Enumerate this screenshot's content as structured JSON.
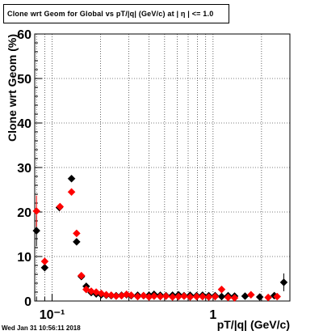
{
  "chart_data": {
    "type": "scatter",
    "title": "Clone wrt Geom for Global vs pT/|q| (GeV/c) at |  η | <= 1.0",
    "xlabel": "pT/|q| (GeV/c)",
    "ylabel": "Clone wrt Geom (%)",
    "x_scale": "log",
    "xlim": [
      0.078,
      3.0
    ],
    "ylim": [
      0,
      60
    ],
    "x_tick_labels": [
      {
        "value": 0.1,
        "label": "10⁻¹"
      },
      {
        "value": 1,
        "label": "1"
      }
    ],
    "y_ticks": [
      0,
      10,
      20,
      30,
      40,
      50,
      60
    ],
    "grid": true,
    "legend": "none",
    "series": [
      {
        "color": "#000000",
        "marker": "diamond",
        "points": [
          {
            "x": 0.08,
            "y": 15.8,
            "err": 3.5
          },
          {
            "x": 0.09,
            "y": 7.5,
            "err": 0.8
          },
          {
            "x": 0.111,
            "y": 21.0,
            "err": 0.5
          },
          {
            "x": 0.132,
            "y": 27.5,
            "err": 0.5
          },
          {
            "x": 0.142,
            "y": 13.3,
            "err": 0.4
          },
          {
            "x": 0.152,
            "y": 5.5,
            "err": 0.3
          },
          {
            "x": 0.163,
            "y": 3.3,
            "err": 0.3
          },
          {
            "x": 0.175,
            "y": 1.9,
            "err": 0.3
          },
          {
            "x": 0.188,
            "y": 1.6,
            "err": 0.2
          },
          {
            "x": 0.202,
            "y": 1.4,
            "err": 0.2
          },
          {
            "x": 0.217,
            "y": 1.3,
            "err": 0.2
          },
          {
            "x": 0.233,
            "y": 1.2,
            "err": 0.2
          },
          {
            "x": 0.25,
            "y": 1.2,
            "err": 0.2
          },
          {
            "x": 0.27,
            "y": 1.3,
            "err": 0.2
          },
          {
            "x": 0.29,
            "y": 1.4,
            "err": 0.2
          },
          {
            "x": 0.31,
            "y": 1.2,
            "err": 0.2
          },
          {
            "x": 0.34,
            "y": 1.3,
            "err": 0.2
          },
          {
            "x": 0.37,
            "y": 1.2,
            "err": 0.2
          },
          {
            "x": 0.4,
            "y": 1.3,
            "err": 0.2
          },
          {
            "x": 0.43,
            "y": 1.5,
            "err": 0.2
          },
          {
            "x": 0.47,
            "y": 1.3,
            "err": 0.2
          },
          {
            "x": 0.51,
            "y": 1.2,
            "err": 0.2
          },
          {
            "x": 0.56,
            "y": 1.3,
            "err": 0.2
          },
          {
            "x": 0.61,
            "y": 1.4,
            "err": 0.2
          },
          {
            "x": 0.66,
            "y": 1.2,
            "err": 0.2
          },
          {
            "x": 0.72,
            "y": 1.3,
            "err": 0.2
          },
          {
            "x": 0.79,
            "y": 1.2,
            "err": 0.2
          },
          {
            "x": 0.86,
            "y": 1.3,
            "err": 0.2
          },
          {
            "x": 0.94,
            "y": 1.2,
            "err": 0.3
          },
          {
            "x": 1.03,
            "y": 1.2,
            "err": 0.3
          },
          {
            "x": 1.13,
            "y": 1.0,
            "err": 0.3
          },
          {
            "x": 1.24,
            "y": 1.2,
            "err": 0.3
          },
          {
            "x": 1.36,
            "y": 1.1,
            "err": 0.3
          },
          {
            "x": 1.58,
            "y": 1.1,
            "err": 0.3
          },
          {
            "x": 1.95,
            "y": 0.9,
            "err": 0.3
          },
          {
            "x": 2.4,
            "y": 1.2,
            "err": 0.4
          },
          {
            "x": 2.75,
            "y": 4.2,
            "err": 2.0
          }
        ]
      },
      {
        "color": "#ff0000",
        "marker": "diamond",
        "points": [
          {
            "x": 0.08,
            "y": 20.2,
            "err": 3.5
          },
          {
            "x": 0.09,
            "y": 8.9,
            "err": 0.8
          },
          {
            "x": 0.112,
            "y": 21.2,
            "err": 0.5
          },
          {
            "x": 0.132,
            "y": 24.5,
            "err": 0.5
          },
          {
            "x": 0.142,
            "y": 15.2,
            "err": 0.4
          },
          {
            "x": 0.152,
            "y": 5.7,
            "err": 0.3
          },
          {
            "x": 0.163,
            "y": 2.6,
            "err": 0.3
          },
          {
            "x": 0.175,
            "y": 2.2,
            "err": 0.3
          },
          {
            "x": 0.188,
            "y": 2.0,
            "err": 0.2
          },
          {
            "x": 0.202,
            "y": 1.7,
            "err": 0.2
          },
          {
            "x": 0.217,
            "y": 1.4,
            "err": 0.2
          },
          {
            "x": 0.233,
            "y": 1.3,
            "err": 0.2
          },
          {
            "x": 0.25,
            "y": 1.1,
            "err": 0.2
          },
          {
            "x": 0.27,
            "y": 1.2,
            "err": 0.2
          },
          {
            "x": 0.29,
            "y": 1.5,
            "err": 0.2
          },
          {
            "x": 0.31,
            "y": 1.3,
            "err": 0.2
          },
          {
            "x": 0.34,
            "y": 1.0,
            "err": 0.2
          },
          {
            "x": 0.37,
            "y": 1.2,
            "err": 0.2
          },
          {
            "x": 0.4,
            "y": 0.9,
            "err": 0.2
          },
          {
            "x": 0.43,
            "y": 1.1,
            "err": 0.2
          },
          {
            "x": 0.47,
            "y": 1.0,
            "err": 0.2
          },
          {
            "x": 0.51,
            "y": 1.1,
            "err": 0.2
          },
          {
            "x": 0.56,
            "y": 0.9,
            "err": 0.2
          },
          {
            "x": 0.61,
            "y": 1.0,
            "err": 0.2
          },
          {
            "x": 0.66,
            "y": 1.1,
            "err": 0.2
          },
          {
            "x": 0.72,
            "y": 0.9,
            "err": 0.2
          },
          {
            "x": 0.79,
            "y": 1.0,
            "err": 0.2
          },
          {
            "x": 0.86,
            "y": 1.0,
            "err": 0.2
          },
          {
            "x": 0.94,
            "y": 0.9,
            "err": 0.3
          },
          {
            "x": 1.03,
            "y": 1.0,
            "err": 0.3
          },
          {
            "x": 1.13,
            "y": 2.6,
            "err": 0.5
          },
          {
            "x": 1.24,
            "y": 0.8,
            "err": 0.3
          },
          {
            "x": 1.36,
            "y": 0.7,
            "err": 0.3
          },
          {
            "x": 1.72,
            "y": 1.4,
            "err": 0.3
          },
          {
            "x": 2.2,
            "y": 0.8,
            "err": 0.3
          },
          {
            "x": 2.5,
            "y": 1.0,
            "err": 0.3
          }
        ]
      }
    ]
  },
  "footer": {
    "timestamp": "Wed Jan 31 10:56:11 2018"
  }
}
